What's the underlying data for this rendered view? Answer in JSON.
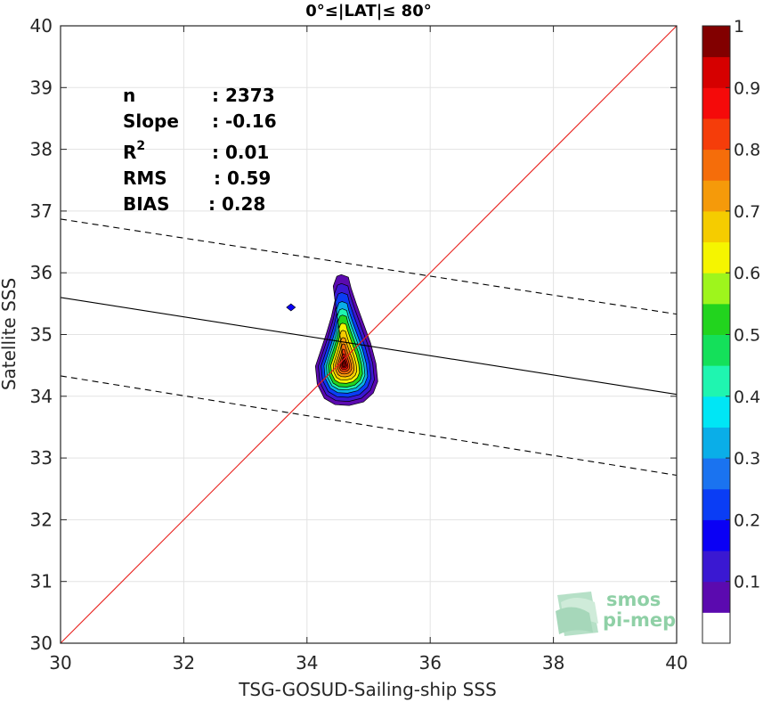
{
  "chart_data": {
    "type": "scatter",
    "subtype": "density-contour",
    "title": "0°≤|LAT|≤ 80°",
    "xlabel": "TSG-GOSUD-Sailing-ship SSS",
    "ylabel": "Satellite SSS",
    "xlim": [
      30,
      40
    ],
    "ylim": [
      30,
      40
    ],
    "xticks": [
      "30",
      "32",
      "34",
      "36",
      "38",
      "40"
    ],
    "yticks": [
      "30",
      "31",
      "32",
      "33",
      "34",
      "35",
      "36",
      "37",
      "38",
      "39",
      "40"
    ],
    "grid": true,
    "stats": [
      {
        "label": "n",
        "value": ": 2373"
      },
      {
        "label": "Slope",
        "value": ": -0.16"
      },
      {
        "label": "R",
        "sup": "2",
        "value": ": 0.01"
      },
      {
        "label": "RMS",
        "value": ": 0.59"
      },
      {
        "label": "BIAS",
        "value": ": 0.28"
      }
    ],
    "identity_line": {
      "color": "#e8201c",
      "points": [
        [
          30,
          30
        ],
        [
          40,
          40
        ]
      ]
    },
    "fit_line": {
      "color": "#000000",
      "points": [
        [
          30,
          35.6
        ],
        [
          40,
          34.03
        ]
      ]
    },
    "upper_bound_line": {
      "style": "dashed",
      "points": [
        [
          30,
          36.87
        ],
        [
          40,
          35.33
        ]
      ]
    },
    "lower_bound_line": {
      "style": "dashed",
      "points": [
        [
          30,
          34.33
        ],
        [
          40,
          32.72
        ]
      ]
    },
    "density_peak": {
      "x": 34.6,
      "y": 34.6
    },
    "contour_levels": [
      0.1,
      0.2,
      0.3,
      0.4,
      0.5,
      0.6,
      0.7,
      0.8,
      0.9,
      1.0
    ],
    "colorbar": {
      "range": [
        0,
        1
      ],
      "ticks": [
        "0.1",
        "0.2",
        "0.3",
        "0.4",
        "0.5",
        "0.6",
        "0.7",
        "0.8",
        "0.9",
        "1"
      ],
      "colors": [
        "#ffffff",
        "#5b0aaf",
        "#3a18d2",
        "#0a00f5",
        "#0a3df5",
        "#1a73f0",
        "#0aaee8",
        "#00e6f5",
        "#1ff5b0",
        "#14e05a",
        "#22d41e",
        "#9ef51c",
        "#f5f500",
        "#f5cc00",
        "#f59a0a",
        "#f56d0a",
        "#f53d0a",
        "#f50a0a",
        "#d60000",
        "#820000"
      ]
    }
  },
  "logo": {
    "line1": "smos",
    "line2": "pi-mep"
  }
}
